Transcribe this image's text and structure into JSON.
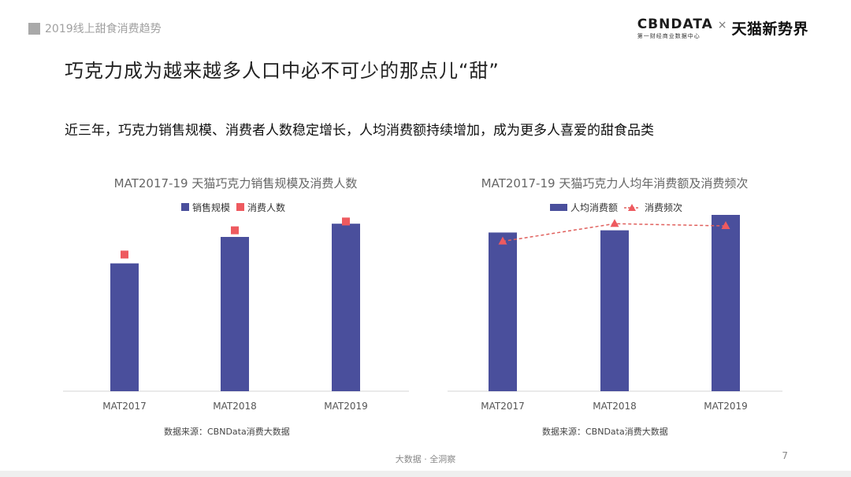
{
  "header": {
    "tag": "2019线上甜食消费趋势"
  },
  "logos": {
    "cbn_main": "CBNDATA",
    "cbn_sub": "第一财经商业数据中心",
    "separator": "×",
    "tmall": "天猫新势界"
  },
  "main_title": "巧克力成为越来越多人口中必不可少的那点儿“甜”",
  "subtitle": "近三年，巧克力销售规模、消费者人数稳定增长，人均消费额持续增加，成为更多人喜爱的甜食品类",
  "footer": {
    "center_text": "大数据 · 全洞察",
    "page_number": "7"
  },
  "colors": {
    "bar": "#4a4f9c",
    "marker": "#ee5a5f",
    "dash": "#e0605d"
  },
  "chart_data": [
    {
      "type": "bar",
      "title": "MAT2017-19 天猫巧克力销售规模及消费人数",
      "categories": [
        "MAT2017",
        "MAT2018",
        "MAT2019"
      ],
      "series": [
        {
          "name": "销售规模",
          "kind": "bar",
          "values": [
            0.58,
            0.7,
            0.76
          ]
        },
        {
          "name": "消费人数",
          "kind": "square-marker",
          "values": [
            0.62,
            0.73,
            0.77
          ]
        }
      ],
      "ylim": [
        0,
        1
      ],
      "xlabel": "",
      "ylabel": "",
      "legend": "top-center",
      "grid": false,
      "source": "数据来源：CBNData消费大数据"
    },
    {
      "type": "bar",
      "title": "MAT2017-19 天猫巧克力人均年消费额及消费频次",
      "categories": [
        "MAT2017",
        "MAT2018",
        "MAT2019"
      ],
      "series": [
        {
          "name": "人均消费额",
          "kind": "bar",
          "values": [
            0.72,
            0.73,
            0.8
          ]
        },
        {
          "name": "消费频次",
          "kind": "dashed-line-triangle",
          "values": [
            0.68,
            0.76,
            0.75
          ]
        }
      ],
      "ylim": [
        0,
        1
      ],
      "xlabel": "",
      "ylabel": "",
      "legend": "top-center",
      "grid": false,
      "source": "数据来源：CBNData消费大数据"
    }
  ]
}
